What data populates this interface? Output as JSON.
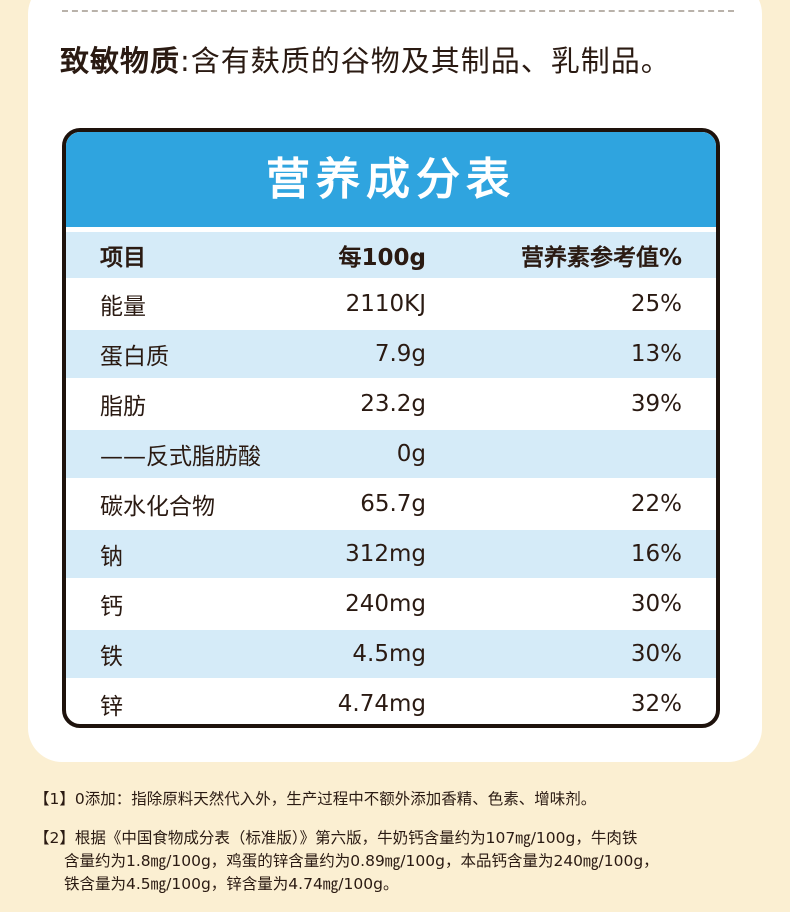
{
  "allergen": {
    "label": "致敏物质",
    "separator": ":",
    "text": "含有麸质的谷物及其制品、乳制品。"
  },
  "table": {
    "title": "营养成分表",
    "headers": [
      "项目",
      "每100g",
      "营养素参考值%"
    ],
    "rows": [
      [
        "能量",
        "2110KJ",
        "25%"
      ],
      [
        "蛋白质",
        "7.9g",
        "13%"
      ],
      [
        "脂肪",
        "23.2g",
        "39%"
      ],
      [
        "——反式脂肪酸",
        "0g",
        ""
      ],
      [
        "碳水化合物",
        "65.7g",
        "22%"
      ],
      [
        "钠",
        "312mg",
        "16%"
      ],
      [
        "钙",
        "240mg",
        "30%"
      ],
      [
        "铁",
        "4.5mg",
        "30%"
      ],
      [
        "锌",
        "4.74mg",
        "32%"
      ]
    ]
  },
  "notes": {
    "note1": "【1】0添加：指除原料天然代入外，生产过程中不额外添加香精、色素、增味剂。",
    "note2_line1": "【2】根据《中国食物成分表（标准版）》第六版，牛奶钙含量约为107㎎/100g，牛肉铁",
    "note2_line2": "含量约为1.8㎎/100g，鸡蛋的锌含量约为0.89㎎/100g，本品钙含量为240㎎/100g，",
    "note2_line3": "铁含量为4.5㎎/100g，锌含量为4.74㎎/100g。"
  },
  "colors": {
    "background": "#fbefd2",
    "title_bar": "#2fa4df",
    "row_tint": "#d5ebf8",
    "border": "#1e120c"
  }
}
